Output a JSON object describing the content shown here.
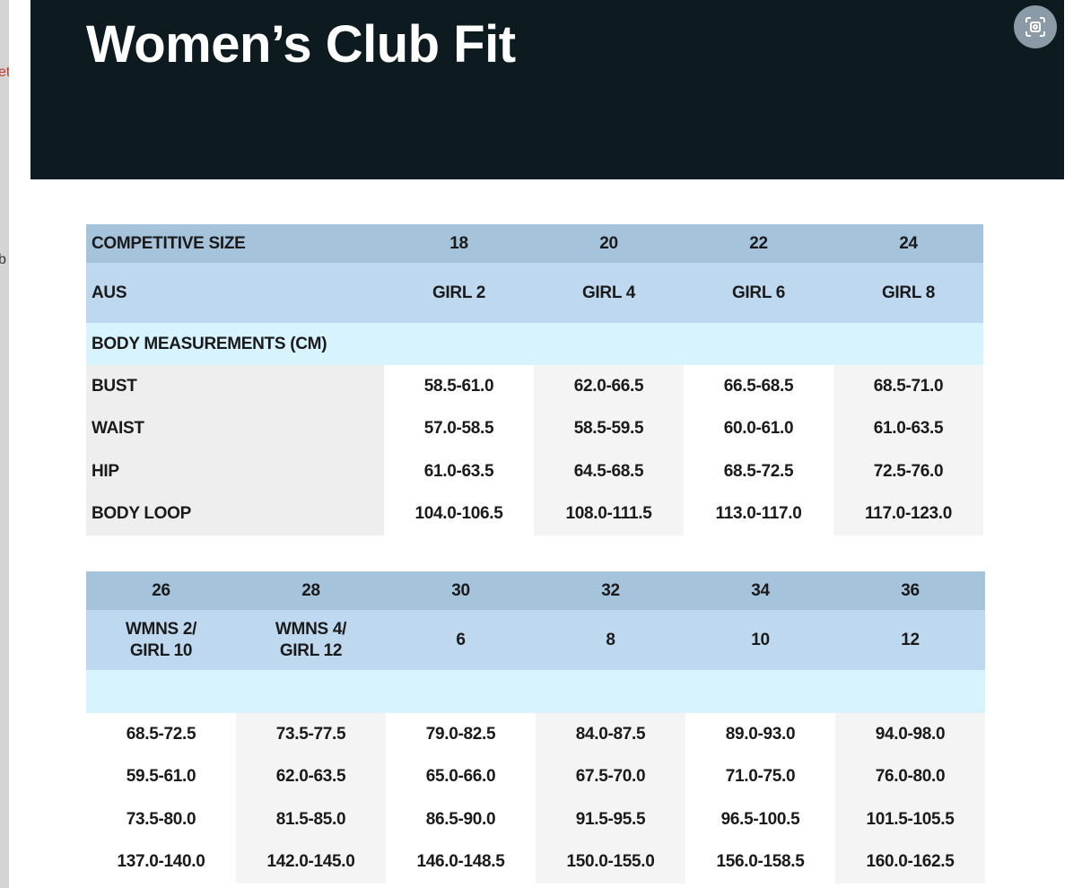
{
  "header": {
    "title": "Women’s Club Fit"
  },
  "sidebar": {
    "fragments": [
      "et",
      "b"
    ]
  },
  "table1": {
    "columns": [
      "COMPETITIVE SIZE",
      "18",
      "20",
      "22",
      "24"
    ],
    "aus": [
      "AUS",
      "GIRL 2",
      "GIRL 4",
      "GIRL  6",
      "GIRL 8"
    ],
    "section": "BODY MEASUREMENTS (CM)",
    "rows": [
      [
        "BUST",
        "58.5-61.0",
        "62.0-66.5",
        "66.5-68.5",
        "68.5-71.0"
      ],
      [
        "WAIST",
        "57.0-58.5",
        "58.5-59.5",
        "60.0-61.0",
        "61.0-63.5"
      ],
      [
        "HIP",
        "61.0-63.5",
        "64.5-68.5",
        "68.5-72.5",
        "72.5-76.0"
      ],
      [
        "BODY LOOP",
        "104.0-106.5",
        "108.0-111.5",
        "113.0-117.0",
        "117.0-123.0"
      ]
    ]
  },
  "table2": {
    "columns": [
      "26",
      "28",
      "30",
      "32",
      "34",
      "36"
    ],
    "aus": [
      "WMNS 2/\nGIRL 10",
      "WMNS 4/\nGIRL 12",
      "6",
      "8",
      "10",
      "12"
    ],
    "rows": [
      [
        "68.5-72.5",
        "73.5-77.5",
        "79.0-82.5",
        "84.0-87.5",
        "89.0-93.0",
        "94.0-98.0"
      ],
      [
        "59.5-61.0",
        "62.0-63.5",
        "65.0-66.0",
        "67.5-70.0",
        "71.0-75.0",
        "76.0-80.0"
      ],
      [
        "73.5-80.0",
        "81.5-85.0",
        "86.5-90.0",
        "91.5-95.5",
        "96.5-100.5",
        "101.5-105.5"
      ],
      [
        "137.0-140.0",
        "142.0-145.0",
        "146.0-148.5",
        "150.0-155.0",
        "156.0-158.5",
        "160.0-162.5"
      ]
    ]
  }
}
